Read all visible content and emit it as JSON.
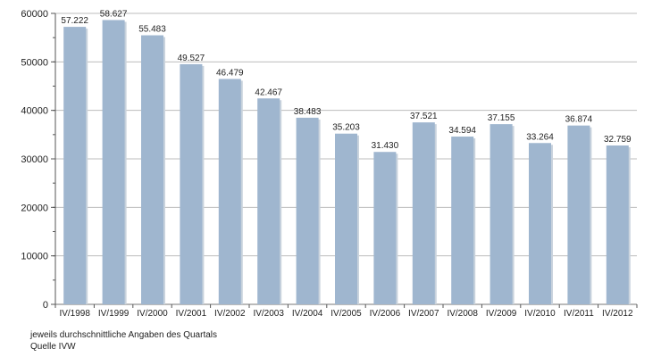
{
  "chart_data": {
    "type": "bar",
    "categories": [
      "IV/1998",
      "IV/1999",
      "IV/2000",
      "IV/2001",
      "IV/2002",
      "IV/2003",
      "IV/2004",
      "IV/2005",
      "IV/2006",
      "IV/2007",
      "IV/2008",
      "IV/2009",
      "IV/2010",
      "IV/2011",
      "IV/2012"
    ],
    "values": [
      57222,
      58627,
      55483,
      49527,
      46479,
      42467,
      38483,
      35203,
      31430,
      37521,
      34594,
      37155,
      33264,
      36874,
      32759
    ],
    "value_labels": [
      "57.222",
      "58.627",
      "55.483",
      "49.527",
      "46.479",
      "42.467",
      "38.483",
      "35.203",
      "31.430",
      "37.521",
      "34.594",
      "37.155",
      "33.264",
      "36.874",
      "32.759"
    ],
    "y_ticks": [
      0,
      10000,
      20000,
      30000,
      40000,
      50000,
      60000
    ],
    "ylim": [
      0,
      60000
    ],
    "grid": true,
    "bar_color": "#9fb6cf",
    "title": "",
    "xlabel": "",
    "ylabel": ""
  },
  "notes": {
    "line1": "jeweils durchschnittliche Angaben des Quartals",
    "line2": "Quelle IVW"
  }
}
